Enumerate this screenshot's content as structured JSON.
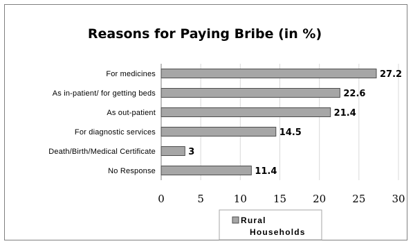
{
  "chart_data": {
    "type": "bar",
    "orientation": "horizontal",
    "title": "Reasons for Paying Bribe (in %)",
    "categories": [
      "For medicines",
      "As in-patient/ for getting beds",
      "As out-patient",
      "For diagnostic services",
      "Death/Birth/Medical Certificate",
      "No Response"
    ],
    "series": [
      {
        "name": "Rural Households",
        "values": [
          27.2,
          22.6,
          21.4,
          14.5,
          3,
          11.4
        ]
      }
    ],
    "value_labels": [
      "27.2",
      "22.6",
      "21.4",
      "14.5",
      "3",
      "11.4"
    ],
    "xlim": [
      0,
      30
    ],
    "xticks": [
      0,
      5,
      10,
      15,
      20,
      25,
      30
    ],
    "xtick_labels": [
      "0",
      "5",
      "10",
      "15",
      "20",
      "25",
      "30"
    ],
    "grid": true,
    "legend": {
      "position": "bottom",
      "lines": [
        "Rural",
        "Households"
      ]
    },
    "colors": {
      "bar_fill": "#a6a6a6",
      "bar_stroke": "#4d4d4d",
      "grid": "#d9d9d9",
      "axis": "#7f7f7f"
    }
  }
}
